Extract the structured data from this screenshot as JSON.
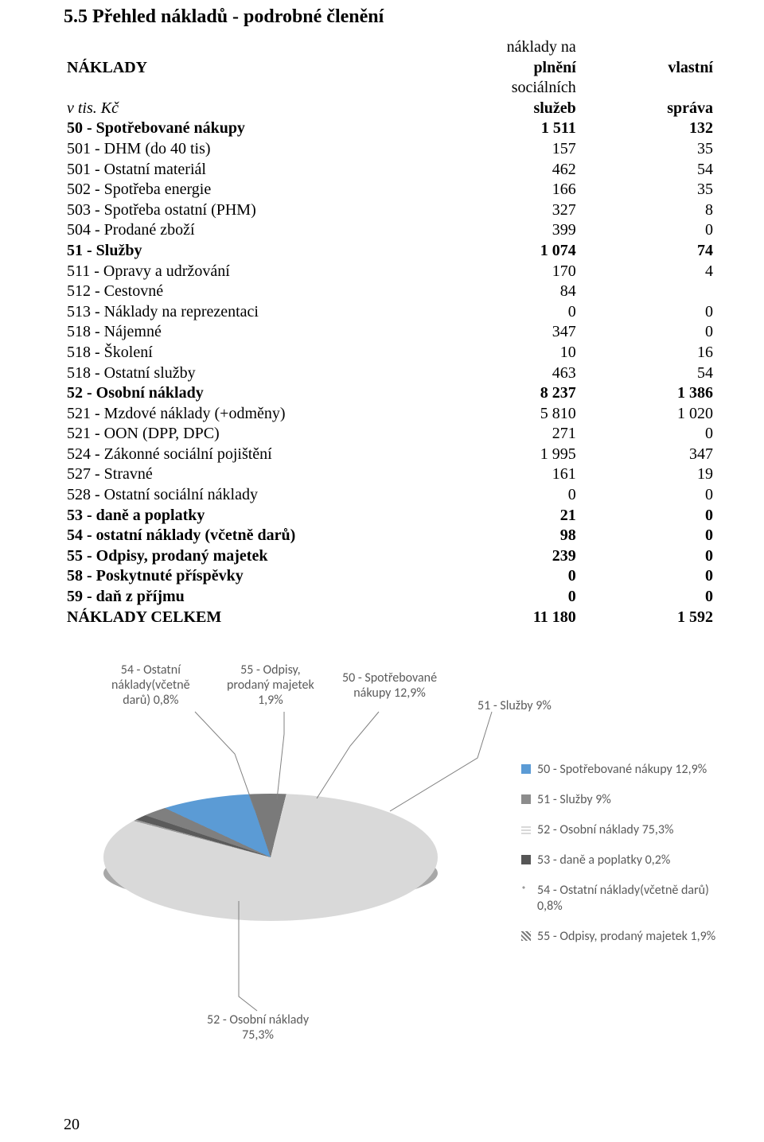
{
  "title": "5.5 Přehled nákladů - podrobné členění",
  "header": {
    "r1c1": "NÁKLADY",
    "r1c2_a": "náklady na",
    "r1c2_b": "plnění",
    "r1c2_c": "sociálních",
    "r1c3_a": "vlastní",
    "r2c1": "v tis. Kč",
    "r2c2": "služeb",
    "r2c3": "správa"
  },
  "rows": [
    {
      "bold": true,
      "label": "50 - Spotřebované nákupy",
      "v1": "1 511",
      "v2": "132"
    },
    {
      "bold": false,
      "label": "501 - DHM (do 40 tis)",
      "v1": "157",
      "v2": "35"
    },
    {
      "bold": false,
      "label": "501 - Ostatní materiál",
      "v1": "462",
      "v2": "54"
    },
    {
      "bold": false,
      "label": "502 - Spotřeba energie",
      "v1": "166",
      "v2": "35"
    },
    {
      "bold": false,
      "label": "503 - Spotřeba ostatní (PHM)",
      "v1": "327",
      "v2": "8"
    },
    {
      "bold": false,
      "label": "504 - Prodané zboží",
      "v1": "399",
      "v2": "0"
    },
    {
      "bold": true,
      "label": "51 - Služby",
      "v1": "1 074",
      "v2": "74"
    },
    {
      "bold": false,
      "label": "511 - Opravy a udržování",
      "v1": "170",
      "v2": "4"
    },
    {
      "bold": false,
      "label": "512 - Cestovné",
      "v1": "84",
      "v2": ""
    },
    {
      "bold": false,
      "label": "513 - Náklady na reprezentaci",
      "v1": "0",
      "v2": "0"
    },
    {
      "bold": false,
      "label": "518 - Nájemné",
      "v1": "347",
      "v2": "0"
    },
    {
      "bold": false,
      "label": "518 - Školení",
      "v1": "10",
      "v2": "16"
    },
    {
      "bold": false,
      "label": "518 - Ostatní služby",
      "v1": "463",
      "v2": "54"
    },
    {
      "bold": true,
      "label": "52 - Osobní náklady",
      "v1": "8 237",
      "v2": "1 386"
    },
    {
      "bold": false,
      "label": "521 - Mzdové náklady (+odměny)",
      "v1": "5 810",
      "v2": "1 020"
    },
    {
      "bold": false,
      "label": "521 - OON (DPP, DPC)",
      "v1": "271",
      "v2": "0"
    },
    {
      "bold": false,
      "label": "524 - Zákonné sociální pojištění",
      "v1": "1 995",
      "v2": "347"
    },
    {
      "bold": false,
      "label": "527 - Stravné",
      "v1": "161",
      "v2": "19"
    },
    {
      "bold": false,
      "label": "528 - Ostatní sociální náklady",
      "v1": "0",
      "v2": "0"
    },
    {
      "bold": true,
      "label": "53 - daně a poplatky",
      "v1": "21",
      "v2": "0"
    },
    {
      "bold": true,
      "label": "54 - ostatní náklady (včetně darů)",
      "v1": "98",
      "v2": "0"
    },
    {
      "bold": true,
      "label": "55 - Odpisy, prodaný majetek",
      "v1": "239",
      "v2": "0"
    },
    {
      "bold": true,
      "label": "58 - Poskytnuté příspěvky",
      "v1": "0",
      "v2": "0"
    },
    {
      "bold": true,
      "label": "59 - daň z příjmu",
      "v1": "0",
      "v2": "0"
    },
    {
      "bold": true,
      "label": "NÁKLADY CELKEM",
      "v1": "11 180",
      "v2": "1 592"
    }
  ],
  "chart": {
    "type": "pie3d",
    "background": "#ffffff",
    "pie_fill_main": "#dcdcdc",
    "pie_side_shade": "#a7a7a7",
    "label_color": "#5b5b5b",
    "label_fontsize": 16,
    "leader_color": "#808080",
    "slices": [
      {
        "label": "50 - Spotřebované nákupy  12,9%",
        "pct": 12.9,
        "color": "#5b9bd5"
      },
      {
        "label": "51 - Služby  9%",
        "pct": 9.0,
        "color": "#7a7a7a"
      },
      {
        "label": "52 - Osobní náklady 75,3%",
        "pct": 75.3,
        "color": "#d9d9d9"
      },
      {
        "label": "53 - daně a poplatky 0,2%",
        "pct": 0.2,
        "color": "#9a9a9a"
      },
      {
        "label": "54 - Ostatní náklady(včetně darů) 0,8%",
        "pct": 0.8,
        "color": "#5b5b5b"
      },
      {
        "label": "55 - Odpisy, prodaný majetek 1,9%",
        "pct": 1.9,
        "color": "#7f7f7f"
      }
    ],
    "legend_swatches": [
      {
        "color": "#5b9bd5",
        "pattern": "solid"
      },
      {
        "color": "#8c8c8c",
        "pattern": "solid"
      },
      {
        "color": "#d9d9d9",
        "pattern": "stripe"
      },
      {
        "color": "#565656",
        "pattern": "solid"
      },
      {
        "color": "#9a9a9a",
        "pattern": "dots"
      },
      {
        "color": "#7a7a7a",
        "pattern": "diag"
      }
    ],
    "callouts": {
      "c54": "54 - Ostatní\nnáklady(včetně\ndarů) 0,8%",
      "c55": "55 - Odpisy,\nprodaný majetek\n1,9%",
      "c50": "50 - Spotřebované\nnákupy  12,9%",
      "c51": "51 - Služby  9%",
      "c52": "52 - Osobní náklady\n75,3%"
    }
  },
  "page_number": "20"
}
